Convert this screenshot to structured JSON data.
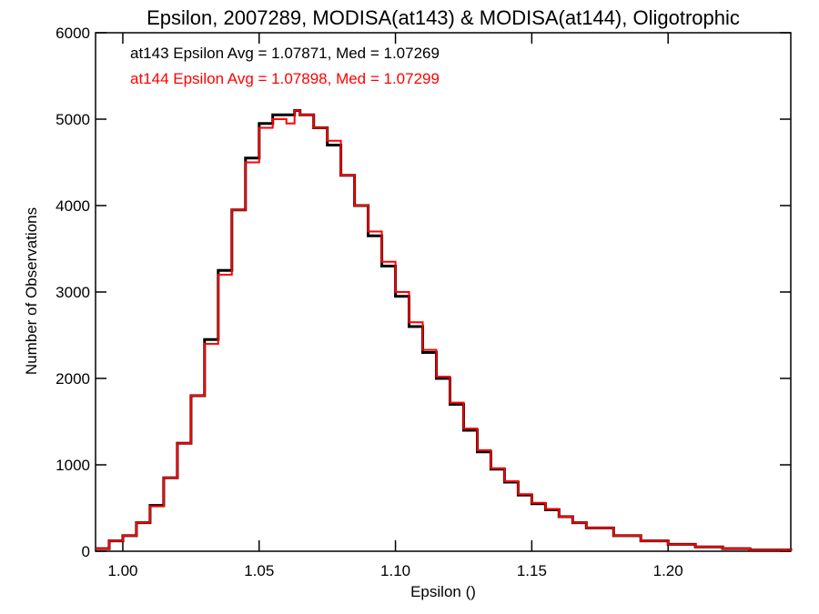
{
  "chart_data": {
    "type": "line",
    "step": true,
    "title": "Epsilon, 2007289, MODISA(at143) & MODISA(at144), Oligotrophic",
    "xlabel": "Epsilon ()",
    "ylabel": "Number of Observations",
    "xlim": [
      0.99,
      1.245
    ],
    "ylim": [
      0,
      6000
    ],
    "xticks": [
      1.0,
      1.05,
      1.1,
      1.15,
      1.2
    ],
    "xtick_labels": [
      "1.00",
      "1.05",
      "1.10",
      "1.15",
      "1.20"
    ],
    "yticks": [
      0,
      1000,
      2000,
      3000,
      4000,
      5000,
      6000
    ],
    "ytick_labels": [
      "0",
      "1000",
      "2000",
      "3000",
      "4000",
      "5000",
      "6000"
    ],
    "grid": false,
    "annotations": [
      {
        "text": "at143 Epsilon Avg = 1.07871, Med = 1.07269",
        "color": "#000000"
      },
      {
        "text": "at144 Epsilon Avg = 1.07898, Med = 1.07299",
        "color": "#ff0000"
      }
    ],
    "series": [
      {
        "color": "#000000",
        "x": [
          0.99,
          0.995,
          1.0,
          1.005,
          1.01,
          1.015,
          1.02,
          1.025,
          1.03,
          1.035,
          1.04,
          1.045,
          1.05,
          1.055,
          1.06,
          1.063,
          1.065,
          1.07,
          1.075,
          1.08,
          1.085,
          1.09,
          1.095,
          1.1,
          1.105,
          1.11,
          1.115,
          1.12,
          1.125,
          1.13,
          1.135,
          1.14,
          1.145,
          1.15,
          1.155,
          1.16,
          1.165,
          1.17,
          1.18,
          1.19,
          1.2,
          1.21,
          1.22,
          1.23,
          1.245
        ],
        "y": [
          30,
          120,
          180,
          330,
          530,
          850,
          1250,
          1800,
          2450,
          3250,
          3950,
          4550,
          4950,
          5050,
          5050,
          5100,
          5050,
          4900,
          4700,
          4350,
          4000,
          3650,
          3300,
          2950,
          2600,
          2300,
          2000,
          1700,
          1400,
          1150,
          950,
          800,
          650,
          550,
          480,
          400,
          330,
          270,
          180,
          120,
          80,
          50,
          30,
          15,
          5
        ]
      },
      {
        "color": "#ff0000",
        "x": [
          0.99,
          0.995,
          1.0,
          1.005,
          1.01,
          1.015,
          1.02,
          1.025,
          1.03,
          1.035,
          1.04,
          1.045,
          1.05,
          1.055,
          1.06,
          1.063,
          1.065,
          1.07,
          1.075,
          1.08,
          1.085,
          1.09,
          1.095,
          1.1,
          1.105,
          1.11,
          1.115,
          1.12,
          1.125,
          1.13,
          1.135,
          1.14,
          1.145,
          1.15,
          1.155,
          1.16,
          1.165,
          1.17,
          1.18,
          1.19,
          1.2,
          1.21,
          1.22,
          1.23,
          1.245
        ],
        "y": [
          30,
          120,
          180,
          330,
          520,
          850,
          1250,
          1800,
          2400,
          3200,
          3950,
          4500,
          4900,
          5000,
          4950,
          5100,
          5050,
          4900,
          4750,
          4350,
          4000,
          3700,
          3350,
          3000,
          2650,
          2330,
          2020,
          1720,
          1420,
          1170,
          960,
          810,
          660,
          560,
          490,
          400,
          330,
          270,
          180,
          120,
          80,
          50,
          30,
          15,
          5
        ]
      }
    ]
  }
}
